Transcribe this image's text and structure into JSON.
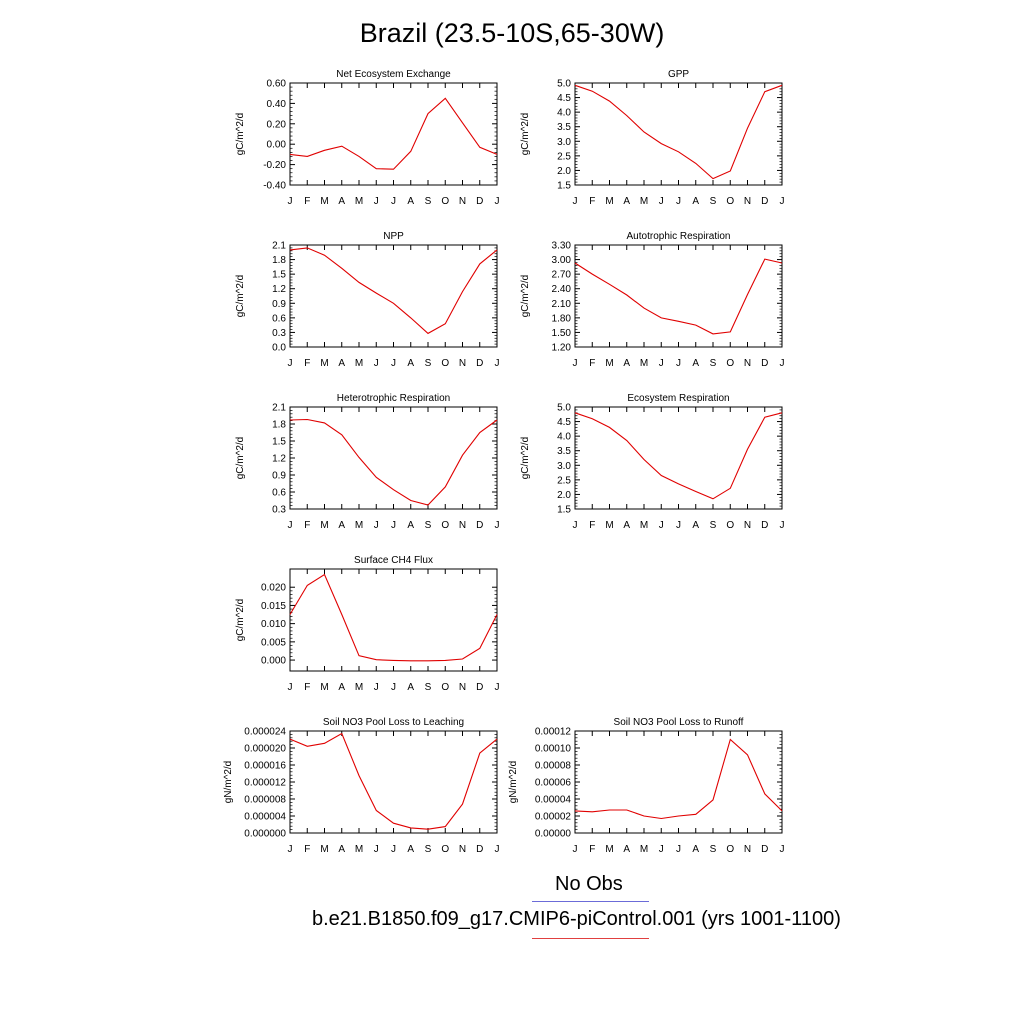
{
  "title": "Brazil (23.5-10S,65-30W)",
  "months": [
    "J",
    "F",
    "M",
    "A",
    "M",
    "J",
    "J",
    "A",
    "S",
    "O",
    "N",
    "D",
    "J"
  ],
  "line_color": "#e00000",
  "legend": {
    "obs_label": "No Obs",
    "obs_color": "#6b6bd8",
    "model_label": "b.e21.B1850.f09_g17.CMIP6-piControl.001 (yrs 1001-1100)",
    "model_color": "#e04040"
  },
  "chart_data": [
    {
      "type": "line",
      "title": "Net Ecosystem Exchange",
      "ylabel": "gC/m^2/d",
      "ylim": [
        -0.4,
        0.6
      ],
      "yticks": [
        -0.4,
        -0.2,
        0.0,
        0.2,
        0.4,
        0.6
      ],
      "ytick_labels": [
        "-0.40",
        "-0.20",
        "0.00",
        "0.20",
        "0.40",
        "0.60"
      ],
      "values": [
        -0.1,
        -0.12,
        -0.06,
        -0.02,
        -0.12,
        -0.24,
        -0.245,
        -0.07,
        0.3,
        0.45,
        0.21,
        -0.03,
        -0.1
      ]
    },
    {
      "type": "line",
      "title": "GPP",
      "ylabel": "gC/m^2/d",
      "ylim": [
        1.5,
        5.0
      ],
      "yticks": [
        1.5,
        2.0,
        2.5,
        3.0,
        3.5,
        4.0,
        4.5,
        5.0
      ],
      "ytick_labels": [
        "1.5",
        "2.0",
        "2.5",
        "3.0",
        "3.5",
        "4.0",
        "4.5",
        "5.0"
      ],
      "values": [
        4.92,
        4.72,
        4.38,
        3.88,
        3.32,
        2.92,
        2.64,
        2.24,
        1.72,
        1.98,
        3.45,
        4.7,
        4.92
      ]
    },
    {
      "type": "line",
      "title": "NPP",
      "ylabel": "gC/m^2/d",
      "ylim": [
        0.0,
        2.1
      ],
      "yticks": [
        0.0,
        0.3,
        0.6,
        0.9,
        1.2,
        1.5,
        1.8,
        2.1
      ],
      "ytick_labels": [
        "0.0",
        "0.3",
        "0.6",
        "0.9",
        "1.2",
        "1.5",
        "1.8",
        "2.1"
      ],
      "values": [
        2.0,
        2.04,
        1.89,
        1.62,
        1.33,
        1.11,
        0.9,
        0.6,
        0.28,
        0.48,
        1.14,
        1.71,
        2.0
      ]
    },
    {
      "type": "line",
      "title": "Autotrophic Respiration",
      "ylabel": "gC/m^2/d",
      "ylim": [
        1.2,
        3.3
      ],
      "yticks": [
        1.2,
        1.5,
        1.8,
        2.1,
        2.4,
        2.7,
        3.0,
        3.3
      ],
      "ytick_labels": [
        "1.20",
        "1.50",
        "1.80",
        "2.10",
        "2.40",
        "2.70",
        "3.00",
        "3.30"
      ],
      "values": [
        2.93,
        2.7,
        2.49,
        2.27,
        2.0,
        1.8,
        1.73,
        1.65,
        1.47,
        1.51,
        2.28,
        3.01,
        2.93
      ]
    },
    {
      "type": "line",
      "title": "Heterotrophic Respiration",
      "ylabel": "gC/m^2/d",
      "ylim": [
        0.3,
        2.1
      ],
      "yticks": [
        0.3,
        0.6,
        0.9,
        1.2,
        1.5,
        1.8,
        2.1
      ],
      "ytick_labels": [
        "0.3",
        "0.6",
        "0.9",
        "1.2",
        "1.5",
        "1.8",
        "2.1"
      ],
      "values": [
        1.87,
        1.88,
        1.82,
        1.61,
        1.21,
        0.86,
        0.64,
        0.45,
        0.37,
        0.69,
        1.25,
        1.65,
        1.87
      ]
    },
    {
      "type": "line",
      "title": "Ecosystem Respiration",
      "ylabel": "gC/m^2/d",
      "ylim": [
        1.5,
        5.0
      ],
      "yticks": [
        1.5,
        2.0,
        2.5,
        3.0,
        3.5,
        4.0,
        4.5,
        5.0
      ],
      "ytick_labels": [
        "1.5",
        "2.0",
        "2.5",
        "3.0",
        "3.5",
        "4.0",
        "4.5",
        "5.0"
      ],
      "values": [
        4.8,
        4.6,
        4.3,
        3.85,
        3.2,
        2.65,
        2.36,
        2.1,
        1.85,
        2.21,
        3.55,
        4.65,
        4.8
      ]
    },
    {
      "type": "line",
      "title": "Surface CH4 Flux",
      "ylabel": "gC/m^2/d",
      "ylim": [
        -0.003,
        0.025
      ],
      "yticks": [
        0.0,
        0.005,
        0.01,
        0.015,
        0.02
      ],
      "ytick_labels": [
        "0.000",
        "0.005",
        "0.010",
        "0.015",
        "0.020"
      ],
      "values": [
        0.0125,
        0.0205,
        0.0235,
        0.0125,
        0.0012,
        0.0001,
        -0.0001,
        -0.0002,
        -0.0002,
        -0.0001,
        0.0003,
        0.0032,
        0.0125
      ]
    },
    null,
    {
      "type": "line",
      "title": "Soil NO3 Pool Loss to Leaching",
      "ylabel": "gN/m^2/d",
      "ylim": [
        0.0,
        2.4e-05
      ],
      "yticks": [
        0.0,
        4e-06,
        8e-06,
        1.2e-05,
        1.6e-05,
        2e-05,
        2.4e-05
      ],
      "ytick_labels": [
        "0.000000",
        "0.000004",
        "0.000008",
        "0.000012",
        "0.000016",
        "0.000020",
        "0.000024"
      ],
      "values": [
        2.21e-05,
        2.04e-05,
        2.11e-05,
        2.34e-05,
        1.35e-05,
        5.3e-06,
        2.3e-06,
        1.2e-06,
        9e-07,
        1.5e-06,
        6.8e-06,
        1.88e-05,
        2.21e-05
      ]
    },
    {
      "type": "line",
      "title": "Soil NO3 Pool Loss to Runoff",
      "ylabel": "gN/m^2/d",
      "ylim": [
        0.0,
        0.00012
      ],
      "yticks": [
        0.0,
        2e-05,
        4e-05,
        6e-05,
        8e-05,
        0.0001,
        0.00012
      ],
      "ytick_labels": [
        "0.00000",
        "0.00002",
        "0.00004",
        "0.00006",
        "0.00008",
        "0.00010",
        "0.00012"
      ],
      "values": [
        2.6e-05,
        2.5e-05,
        2.7e-05,
        2.7e-05,
        2e-05,
        1.7e-05,
        2e-05,
        2.2e-05,
        3.9e-05,
        0.00011,
        9.2e-05,
        4.6e-05,
        2.6e-05
      ]
    }
  ]
}
